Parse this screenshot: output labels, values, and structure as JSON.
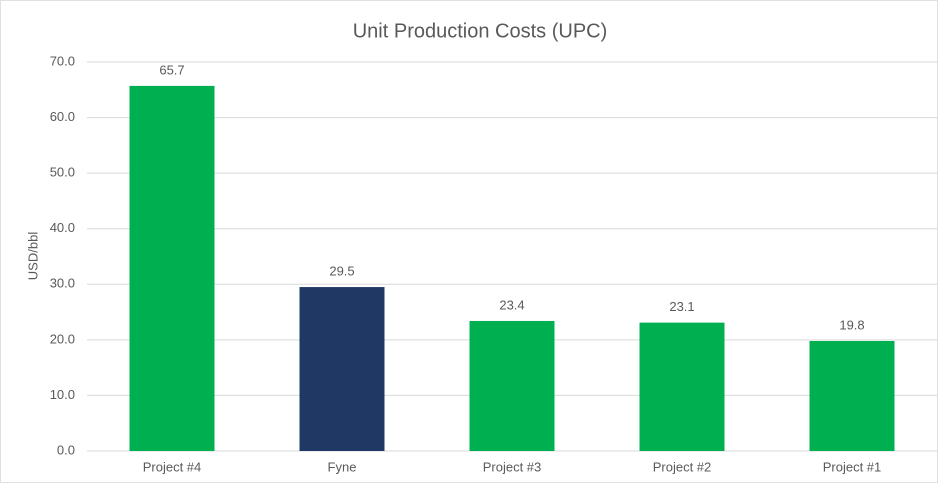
{
  "chart_data": {
    "type": "bar",
    "title": "Unit Production Costs (UPC)",
    "y_label": "USD/bbl",
    "categories": [
      "Project #4",
      "Fyne",
      "Project #3",
      "Project #2",
      "Project #1"
    ],
    "values": [
      65.7,
      29.5,
      23.4,
      23.1,
      19.8
    ],
    "colors": [
      "#00b050",
      "#1f3864",
      "#00b050",
      "#00b050",
      "#00b050"
    ],
    "ylim": [
      0,
      70
    ],
    "yticks": [
      {
        "value": 0,
        "label": "0.0"
      },
      {
        "value": 10,
        "label": "10.0"
      },
      {
        "value": 20,
        "label": "20.0"
      },
      {
        "value": 30,
        "label": "30.0"
      },
      {
        "value": 40,
        "label": "40.0"
      },
      {
        "value": 50,
        "label": "50.0"
      },
      {
        "value": 60,
        "label": "60.0"
      },
      {
        "value": 70,
        "label": "70.0"
      }
    ],
    "grid": true
  }
}
